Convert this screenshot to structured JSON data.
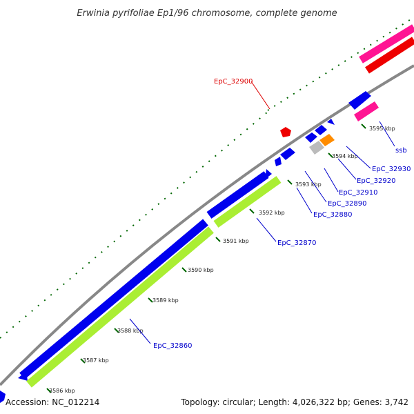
{
  "title": "Erwinia pyrifoliae Ep1/96 chromosome, complete genome",
  "footer": {
    "accession": "Accession: NC_012214",
    "summary": "Topology: circular; Length: 4,026,322 bp; Genes: 3,742"
  },
  "ticks": [
    "3586 kbp",
    "3587 kbp",
    "3588 kbp",
    "3589 kbp",
    "3590 kbp",
    "3591 kbp",
    "3592 kbp",
    "3593 kbp",
    "3594 kbp",
    "3595 kbp"
  ],
  "genes": [
    {
      "label": "EpC_32860",
      "color": "#0000cc"
    },
    {
      "label": "EpC_32870",
      "color": "#0000cc"
    },
    {
      "label": "EpC_32880",
      "color": "#0000cc"
    },
    {
      "label": "EpC_32890",
      "color": "#0000cc"
    },
    {
      "label": "EpC_32900",
      "color": "#dd0000"
    },
    {
      "label": "EpC_32910",
      "color": "#0000cc"
    },
    {
      "label": "EpC_32920",
      "color": "#0000cc"
    },
    {
      "label": "EpC_32930",
      "color": "#0000cc"
    },
    {
      "label": "ssb",
      "color": "#0000cc"
    }
  ],
  "colors": {
    "cds": "#0000ee",
    "gene": "#aaee33",
    "pseudo": "#ff1493",
    "rna": "#ee0000",
    "orange": "#ff8c00",
    "gray": "#bbbbbb",
    "backbone": "#888888",
    "ticks": "#006600"
  }
}
